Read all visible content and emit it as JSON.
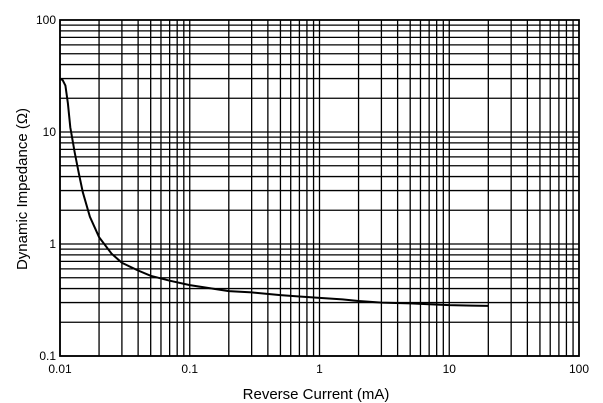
{
  "chart_data": {
    "type": "line",
    "title": "",
    "xlabel": "Reverse Current (mA)",
    "ylabel": "Dynamic Impedance (Ω)",
    "x_scale": "log",
    "y_scale": "log",
    "xlim": [
      0.01,
      100
    ],
    "ylim": [
      0.1,
      100
    ],
    "x_ticks": [
      "0.01",
      "0.1",
      "1",
      "10",
      "100"
    ],
    "y_ticks": [
      "100",
      "10",
      "1",
      "0.1"
    ],
    "grid": true,
    "series": [
      {
        "x": [
          0.01,
          0.0105,
          0.011,
          0.0115,
          0.012,
          0.013,
          0.014,
          0.015,
          0.017,
          0.02,
          0.025,
          0.03,
          0.04,
          0.05,
          0.07,
          0.1,
          0.15,
          0.2,
          0.3,
          0.5,
          0.7,
          1,
          1.5,
          2,
          3,
          5,
          7,
          10,
          15,
          20
        ],
        "y": [
          30,
          29,
          26,
          18,
          11,
          6.5,
          4.2,
          2.9,
          1.75,
          1.15,
          0.82,
          0.68,
          0.58,
          0.52,
          0.47,
          0.43,
          0.4,
          0.38,
          0.37,
          0.35,
          0.34,
          0.33,
          0.32,
          0.31,
          0.3,
          0.295,
          0.29,
          0.285,
          0.282,
          0.28
        ]
      }
    ]
  }
}
